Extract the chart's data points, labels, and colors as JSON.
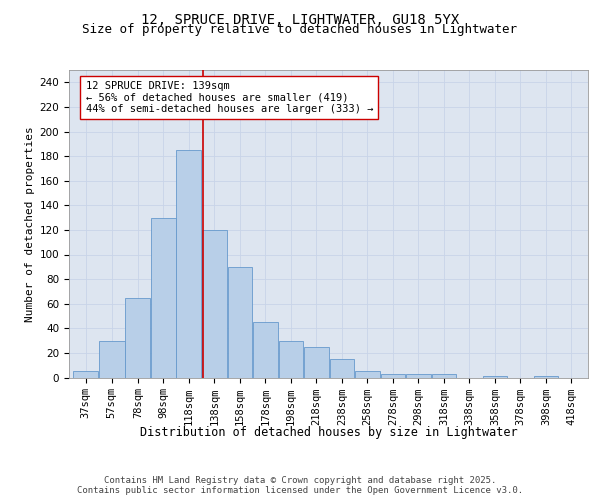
{
  "title1": "12, SPRUCE DRIVE, LIGHTWATER, GU18 5YX",
  "title2": "Size of property relative to detached houses in Lightwater",
  "xlabel": "Distribution of detached houses by size in Lightwater",
  "ylabel": "Number of detached properties",
  "bar_color": "#b8cfe8",
  "bar_edge_color": "#6699cc",
  "bin_edges": [
    37,
    57,
    78,
    98,
    118,
    138,
    158,
    178,
    198,
    218,
    238,
    258,
    278,
    298,
    318,
    338,
    358,
    378,
    398,
    418,
    438
  ],
  "bar_heights": [
    5,
    30,
    65,
    130,
    185,
    120,
    90,
    45,
    30,
    25,
    15,
    5,
    3,
    3,
    3,
    0,
    1,
    0,
    1,
    0
  ],
  "red_line_x": 139,
  "red_line_color": "#cc0000",
  "annotation_text": "12 SPRUCE DRIVE: 139sqm\n← 56% of detached houses are smaller (419)\n44% of semi-detached houses are larger (333) →",
  "annotation_box_color": "#ffffff",
  "annotation_box_edge": "#cc0000",
  "ylim": [
    0,
    250
  ],
  "yticks": [
    0,
    20,
    40,
    60,
    80,
    100,
    120,
    140,
    160,
    180,
    200,
    220,
    240
  ],
  "grid_color": "#c8d4e8",
  "bg_color": "#dde5f0",
  "footer_text": "Contains HM Land Registry data © Crown copyright and database right 2025.\nContains public sector information licensed under the Open Government Licence v3.0.",
  "title1_fontsize": 10,
  "title2_fontsize": 9,
  "xlabel_fontsize": 8.5,
  "ylabel_fontsize": 8,
  "tick_fontsize": 7.5,
  "annotation_fontsize": 7.5,
  "footer_fontsize": 6.5
}
